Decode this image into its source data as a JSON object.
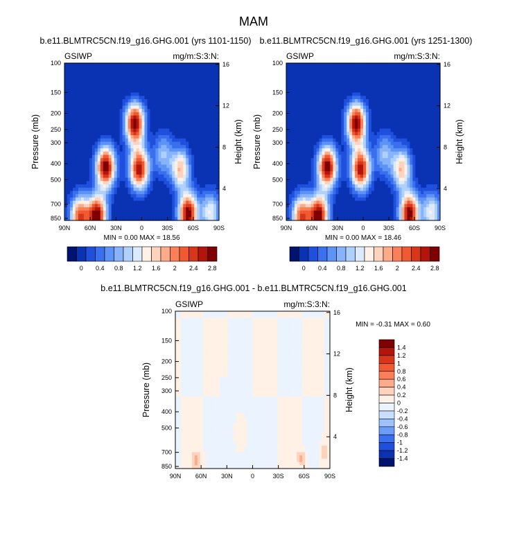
{
  "figure": {
    "title": "MAM",
    "colors": {
      "absolute_scale": [
        "#00136e",
        "#0a33b3",
        "#1e50dd",
        "#3a6fee",
        "#5d92f6",
        "#86b3fa",
        "#b0d0fc",
        "#dbeafd",
        "#fff1e6",
        "#fed3bd",
        "#fdab88",
        "#fb7f58",
        "#f05a31",
        "#d8361b",
        "#b3150c",
        "#7f0000"
      ],
      "diff_scale": [
        "#00136e",
        "#0a33b3",
        "#1e50dd",
        "#3a6fee",
        "#6b9cf7",
        "#9cc1fb",
        "#c9defd",
        "#eaf3fe",
        "#fff1e6",
        "#fed3bd",
        "#fdab88",
        "#fb7f58",
        "#f05a31",
        "#d8361b",
        "#b3150c",
        "#7f0000"
      ]
    }
  },
  "chart_data": [
    {
      "type": "heatmap",
      "title": "b.e11.BLMTRC5CN.f19_g16.GHG.001 (yrs 1101-1150)",
      "left_label": "GSIWP",
      "right_label": "mg/m:S:3:N:",
      "ylabel": "Pressure (mb)",
      "y2label": "Height (km)",
      "x_ticks": [
        "90N",
        "60N",
        "30N",
        "0",
        "30S",
        "60S",
        "90S"
      ],
      "y_ticks": [
        100,
        150,
        200,
        250,
        300,
        400,
        500,
        700,
        850
      ],
      "y2_ticks": [
        4,
        8,
        12,
        16
      ],
      "xlim": [
        90,
        -90
      ],
      "ylim": [
        875,
        100
      ],
      "stats": "MIN =  0.00  MAX = 18.56",
      "colorbar_labels": [
        "0",
        "0.4",
        "0.8",
        "1.2",
        "1.6",
        "2",
        "2.4",
        "2.8"
      ],
      "features": [
        {
          "lat": 42,
          "p": 420,
          "value": 3.0
        },
        {
          "lat": 52,
          "p": 820,
          "value": 3.0
        },
        {
          "lat": 72,
          "p": 830,
          "value": 2.4
        },
        {
          "lat": 8,
          "p": 230,
          "value": 3.0
        },
        {
          "lat": 3,
          "p": 430,
          "value": 2.8
        },
        {
          "lat": -54,
          "p": 800,
          "value": 3.0
        },
        {
          "lat": -45,
          "p": 430,
          "value": 1.8
        },
        {
          "lat": -25,
          "p": 350,
          "value": 1.0
        },
        {
          "lat": -80,
          "p": 780,
          "value": 1.4
        }
      ]
    },
    {
      "type": "heatmap",
      "title": "b.e11.BLMTRC5CN.f19_g16.GHG.001 (yrs 1251-1300)",
      "left_label": "GSIWP",
      "right_label": "mg/m:S:3:N:",
      "ylabel": "Pressure (mb)",
      "y2label": "Height (km)",
      "x_ticks": [
        "90N",
        "60N",
        "30N",
        "0",
        "30S",
        "60S",
        "90S"
      ],
      "y_ticks": [
        100,
        150,
        200,
        250,
        300,
        400,
        500,
        700,
        850
      ],
      "y2_ticks": [
        4,
        8,
        12,
        16
      ],
      "xlim": [
        90,
        -90
      ],
      "ylim": [
        875,
        100
      ],
      "stats": "MIN =  0.00  MAX = 18.46",
      "colorbar_labels": [
        "0",
        "0.4",
        "0.8",
        "1.2",
        "1.6",
        "2",
        "2.4",
        "2.8"
      ],
      "features": [
        {
          "lat": 42,
          "p": 420,
          "value": 3.0
        },
        {
          "lat": 52,
          "p": 820,
          "value": 3.0
        },
        {
          "lat": 72,
          "p": 830,
          "value": 2.4
        },
        {
          "lat": 8,
          "p": 230,
          "value": 3.0
        },
        {
          "lat": 3,
          "p": 430,
          "value": 2.8
        },
        {
          "lat": -54,
          "p": 800,
          "value": 3.0
        },
        {
          "lat": -45,
          "p": 430,
          "value": 1.8
        },
        {
          "lat": -25,
          "p": 350,
          "value": 1.0
        },
        {
          "lat": -80,
          "p": 780,
          "value": 1.4
        }
      ]
    },
    {
      "type": "heatmap",
      "title": "b.e11.BLMTRC5CN.f19_g16.GHG.001 - b.e11.BLMTRC5CN.f19_g16.GHG.001",
      "left_label": "GSIWP",
      "right_label": "mg/m:S:3:N:",
      "ylabel": "Pressure (mb)",
      "y2label": "Height (km)",
      "x_ticks": [
        "90N",
        "60N",
        "30N",
        "0",
        "30S",
        "60S",
        "90S"
      ],
      "y_ticks": [
        100,
        150,
        200,
        250,
        300,
        400,
        500,
        700,
        850
      ],
      "y2_ticks": [
        4,
        8,
        12,
        16
      ],
      "xlim": [
        90,
        -90
      ],
      "ylim": [
        875,
        100
      ],
      "stats": "MIN = -0.31  MAX =  0.60",
      "colorbar_labels": [
        "1.4",
        "1.2",
        "1",
        "0.8",
        "0.6",
        "0.4",
        "0.2",
        "0",
        "-0.2",
        "-0.4",
        "-0.6",
        "-0.8",
        "-1",
        "-1.2",
        "-1.4"
      ]
    }
  ]
}
